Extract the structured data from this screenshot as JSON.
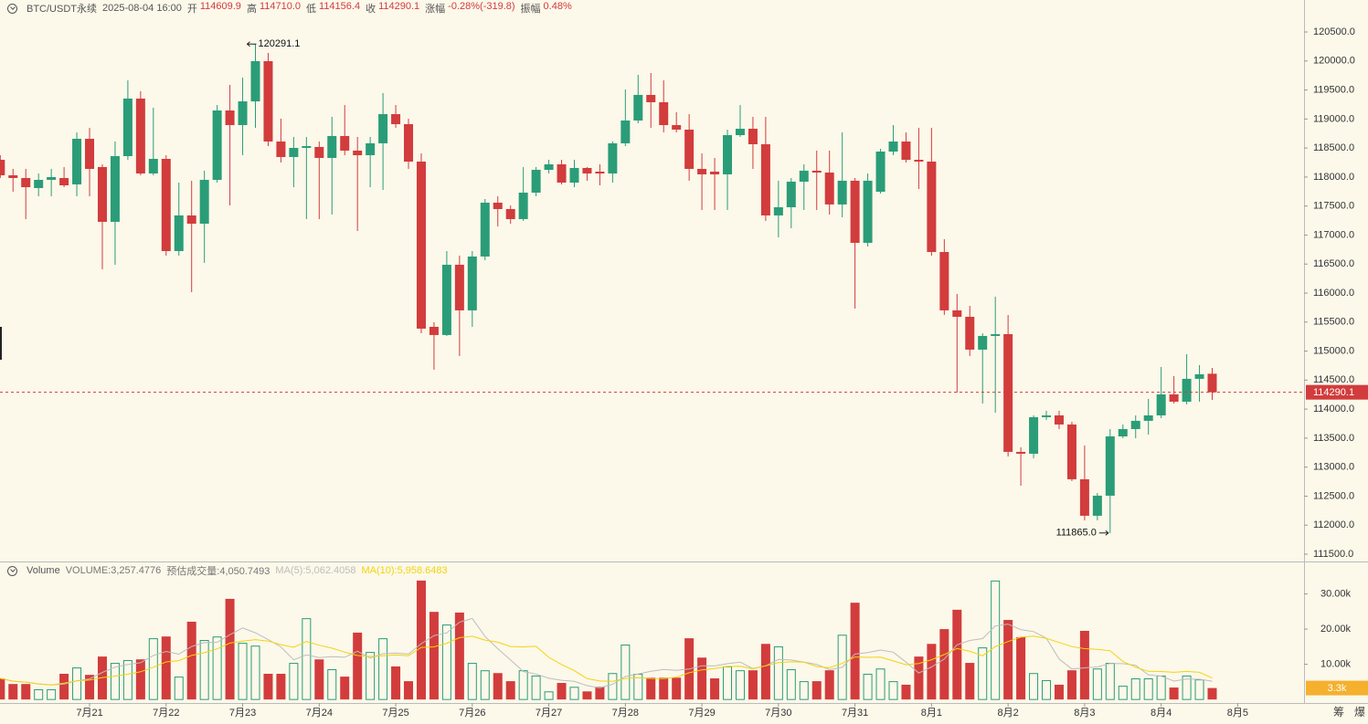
{
  "header": {
    "symbol": "BTC/USDT永续",
    "time": "2025-08-04 16:00",
    "fields": [
      {
        "label": "开",
        "value": "114609.9"
      },
      {
        "label": "高",
        "value": "114710.0"
      },
      {
        "label": "低",
        "value": "114156.4"
      },
      {
        "label": "收",
        "value": "114290.1"
      },
      {
        "label": "涨幅",
        "value": "-0.28%(-319.8)"
      },
      {
        "label": "振幅",
        "value": "0.48%"
      }
    ]
  },
  "volume_header": {
    "title": "Volume",
    "items": [
      {
        "text": "VOLUME:3,257.4776",
        "color": "#777777"
      },
      {
        "text": "预估成交量:4,050.7493",
        "color": "#777777"
      },
      {
        "text": "MA(5):5,062.4058",
        "color": "#bdbdbd",
        "period": 5
      },
      {
        "text": "MA(10):5,958.6483",
        "color": "#f2d40c",
        "period": 10
      }
    ]
  },
  "chart_data": {
    "type": "candlestick",
    "categories": [
      null,
      null,
      null,
      null,
      null,
      null,
      null,
      "7月21",
      null,
      null,
      null,
      null,
      null,
      "7月22",
      null,
      null,
      null,
      null,
      null,
      "7月23",
      null,
      null,
      null,
      null,
      null,
      "7月24",
      null,
      null,
      null,
      null,
      null,
      "7月25",
      null,
      null,
      null,
      null,
      null,
      "7月26",
      null,
      null,
      null,
      null,
      null,
      "7月27",
      null,
      null,
      null,
      null,
      null,
      "7月28",
      null,
      null,
      null,
      null,
      null,
      "7月29",
      null,
      null,
      null,
      null,
      null,
      "7月30",
      null,
      null,
      null,
      null,
      null,
      "7月31",
      null,
      null,
      null,
      null,
      null,
      "8月1",
      null,
      null,
      null,
      null,
      null,
      "8月2",
      null,
      null,
      null,
      null,
      null,
      "8月3",
      null,
      null,
      null,
      null,
      null,
      "8月4",
      null,
      null,
      null,
      null,
      null,
      "8月5"
    ],
    "open": [
      118297,
      118030,
      117983,
      117810,
      117951,
      117983,
      117873,
      118659,
      118172,
      117228,
      118360,
      119352,
      118061,
      118313,
      116724,
      117338,
      117196,
      117951,
      119147,
      118895,
      119304,
      119997,
      118612,
      118345,
      118502,
      118518,
      118329,
      118707,
      118455,
      118376,
      118581,
      119084,
      118911,
      118266,
      115418,
      115277,
      116488,
      115702,
      116630,
      117558,
      117448,
      117275,
      117731,
      118124,
      118219,
      117904,
      118156,
      118093,
      118061,
      118581,
      118974,
      119415,
      119289,
      118895,
      118817,
      118140,
      118093,
      118046,
      118722,
      118832,
      118565,
      117338,
      117479,
      117920,
      118109,
      118077,
      117527,
      117936,
      116866,
      117747,
      118439,
      118612,
      118297,
      118266,
      116708,
      115702,
      115591,
      115025,
      115261,
      115292,
      113263,
      113231,
      113861,
      113892,
      113735,
      112791,
      112162,
      112508,
      113530,
      113656,
      113798,
      113892,
      114254,
      114128,
      114522,
      114609.9,
      null,
      null
    ],
    "high": [
      118376,
      118140,
      118140,
      118061,
      118140,
      118172,
      118769,
      118848,
      118219,
      118612,
      119666,
      119477,
      119194,
      118376,
      117904,
      117936,
      118109,
      119241,
      119588,
      119713,
      120291.1,
      120138,
      119005,
      118691,
      118691,
      118612,
      119037,
      119241,
      118691,
      118691,
      119446,
      119241,
      119005,
      118408,
      115497,
      116724,
      116646,
      116724,
      117621,
      117668,
      117511,
      118172,
      118172,
      118297,
      118297,
      118297,
      118172,
      118219,
      118612,
      119509,
      119761,
      119792,
      119666,
      119116,
      119084,
      118408,
      118329,
      118817,
      119241,
      119037,
      119037,
      117936,
      117983,
      118219,
      118455,
      118455,
      118769,
      117983,
      118061,
      118486,
      118895,
      118769,
      118848,
      118848,
      116929,
      115985,
      115780,
      115308,
      115938,
      115623,
      113342,
      113892,
      113971,
      113971,
      113782,
      113373,
      112555,
      113656,
      113735,
      113892,
      114175,
      114726,
      114569,
      114946,
      114758,
      114710.0,
      null,
      null
    ],
    "low": [
      117983,
      117747,
      117275,
      117668,
      117668,
      117825,
      117668,
      117668,
      116410,
      116488,
      118297,
      118030,
      118030,
      116646,
      116646,
      116016,
      116520,
      117904,
      117511,
      118376,
      118848,
      118533,
      118250,
      117825,
      117275,
      117275,
      117353,
      118376,
      117070,
      117825,
      117778,
      118848,
      118140,
      115308,
      114679,
      115261,
      114915,
      115418,
      116567,
      117149,
      117196,
      117243,
      117668,
      118061,
      117873,
      117825,
      117936,
      117857,
      117904,
      118533,
      118927,
      118848,
      118769,
      118769,
      117936,
      117432,
      117432,
      117432,
      118691,
      118140,
      117243,
      116960,
      117117,
      117432,
      117432,
      117353,
      117306,
      115733,
      116803,
      117715,
      118376,
      118250,
      117794,
      116646,
      115623,
      114286,
      114915,
      114097,
      113939,
      113184,
      112681,
      113153,
      113814,
      113656,
      112759,
      112083,
      112083,
      111865,
      113499,
      113499,
      113562,
      113845,
      114097,
      114081,
      114128,
      114156.4,
      null,
      null
    ],
    "close": [
      118030,
      117983,
      117825,
      117951,
      117999,
      117857,
      118659,
      118140,
      117228,
      118360,
      119352,
      118061,
      118313,
      116724,
      117338,
      117196,
      117951,
      119147,
      118895,
      119304,
      119997,
      118612,
      118345,
      118502,
      118533,
      118329,
      118707,
      118455,
      118376,
      118581,
      119084,
      118911,
      118266,
      115387,
      115277,
      116488,
      115702,
      116630,
      117558,
      117448,
      117275,
      117731,
      118124,
      118219,
      117904,
      118156,
      118061,
      118061,
      118581,
      118974,
      119415,
      119289,
      118895,
      118817,
      118140,
      118046,
      118046,
      118722,
      118832,
      118565,
      117338,
      117479,
      117920,
      118109,
      118077,
      117527,
      117936,
      116866,
      117936,
      118439,
      118612,
      118297,
      118266,
      116708,
      115702,
      115591,
      115025,
      115261,
      115292,
      113263,
      113231,
      113861,
      113892,
      113735,
      112791,
      112162,
      112508,
      113530,
      113656,
      113798,
      113892,
      114254,
      114128,
      114522,
      114600,
      114290.1,
      null,
      null
    ],
    "volume": [
      6000,
      4400,
      4400,
      2900,
      2900,
      7300,
      9100,
      7000,
      12200,
      10400,
      11200,
      11400,
      17400,
      17900,
      6500,
      22100,
      16900,
      17900,
      28600,
      16100,
      15300,
      7300,
      7300,
      10400,
      23100,
      11400,
      8600,
      6500,
      19000,
      13500,
      17400,
      9400,
      5200,
      33800,
      24900,
      21300,
      24700,
      10400,
      8300,
      7500,
      5200,
      8300,
      6800,
      2300,
      4700,
      3600,
      2300,
      3600,
      7500,
      15600,
      7300,
      6200,
      6200,
      6200,
      17400,
      11900,
      6000,
      9400,
      8300,
      8300,
      15800,
      15100,
      8600,
      5200,
      5200,
      8300,
      18400,
      27500,
      7300,
      8800,
      5200,
      4200,
      12200,
      15800,
      20000,
      25500,
      10400,
      14800,
      33800,
      22600,
      17700,
      7500,
      5500,
      4200,
      8300,
      19500,
      8800,
      10400,
      3900,
      6000,
      6000,
      6800,
      3400,
      6800,
      5700,
      3257.4776,
      null,
      null
    ],
    "volume_last_label": "3.3k",
    "up_color": "#2a9d78",
    "down_color": "#d23c3c",
    "ylim": [
      111374,
      121051
    ],
    "yticks": [
      {
        "value": 111500,
        "label": "111500.0"
      },
      {
        "value": 112000,
        "label": "112000.0"
      },
      {
        "value": 112500,
        "label": "112500.0"
      },
      {
        "value": 113000,
        "label": "113000.0"
      },
      {
        "value": 113500,
        "label": "113500.0"
      },
      {
        "value": 114000,
        "label": "114000.0"
      },
      {
        "value": 114500,
        "label": "114500.0"
      },
      {
        "value": 115000,
        "label": "115000.0"
      },
      {
        "value": 115500,
        "label": "115500.0"
      },
      {
        "value": 116000,
        "label": "116000.0"
      },
      {
        "value": 116500,
        "label": "116500.0"
      },
      {
        "value": 117000,
        "label": "117000.0"
      },
      {
        "value": 117500,
        "label": "117500.0"
      },
      {
        "value": 118000,
        "label": "118000.0"
      },
      {
        "value": 118500,
        "label": "118500.0"
      },
      {
        "value": 119000,
        "label": "119000.0"
      },
      {
        "value": 119500,
        "label": "119500.0"
      },
      {
        "value": 120000,
        "label": "120000.0"
      },
      {
        "value": 120500,
        "label": "120500.0"
      }
    ],
    "volume_ylim": [
      -1000,
      38700
    ],
    "volume_ticks": [
      {
        "value": 10000,
        "label": "10.00k"
      },
      {
        "value": 20000,
        "label": "20.00k"
      },
      {
        "value": 30000,
        "label": "30.00k"
      }
    ],
    "annotations": [
      {
        "value": 120291.1
      },
      {
        "value": 111865,
        "label": "111865.0"
      }
    ]
  },
  "footer": [
    "筹",
    "爆"
  ]
}
